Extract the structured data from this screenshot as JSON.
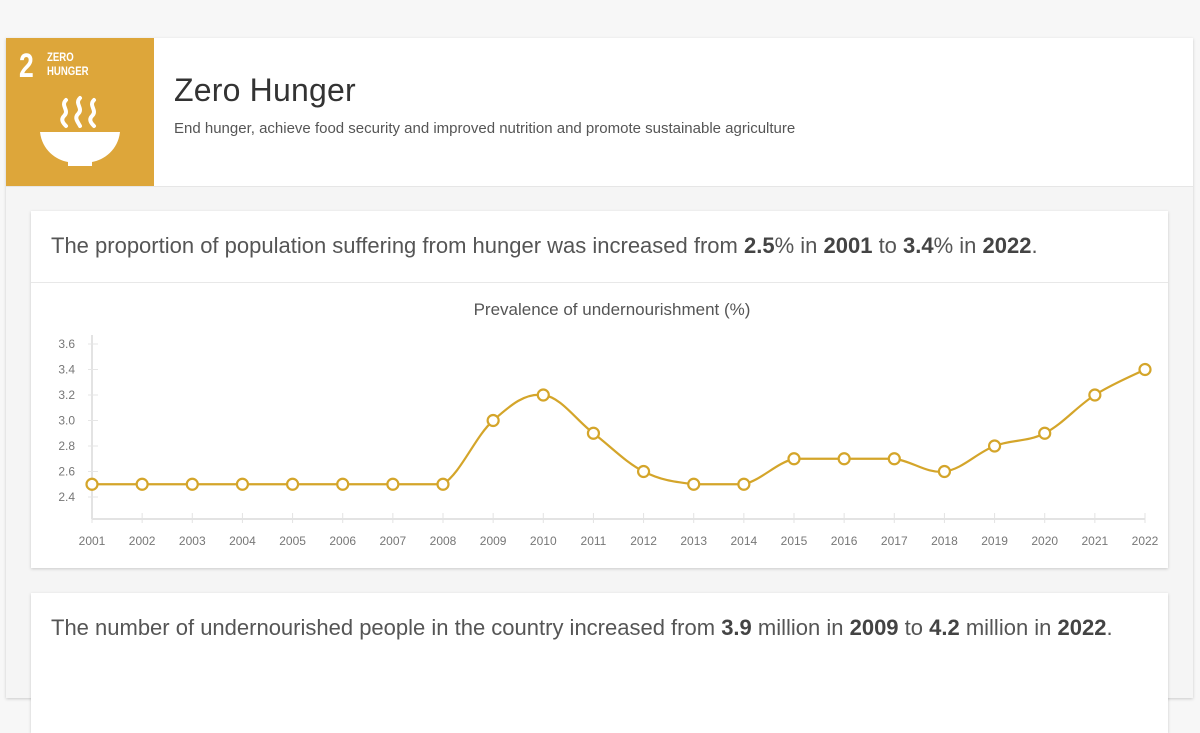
{
  "goal": {
    "number": "2",
    "label_line1": "ZERO",
    "label_line2": "HUNGER",
    "icon": "steaming-bowl-icon",
    "color": "#dda63a",
    "title": "Zero Hunger",
    "subtitle": "End hunger, achieve food security and improved nutrition and promote sustainable agriculture"
  },
  "cards": [
    {
      "statement": {
        "t1": "The proportion of population suffering from hunger was increased from ",
        "v1": "2.5",
        "t2": "% in ",
        "v2": "2001",
        "t3": " to ",
        "v3": "3.4",
        "t4": "% in ",
        "v4": "2022",
        "t5": "."
      }
    },
    {
      "statement": {
        "t1": "The number of undernourished people in the country increased from ",
        "v1": "3.9",
        "t2": " million in ",
        "v2": "2009",
        "t3": " to ",
        "v3": "4.2",
        "t4": " million in ",
        "v4": "2022",
        "t5": "."
      }
    }
  ],
  "chart_data": {
    "type": "line",
    "title": "Prevalence of undernourishment (%)",
    "xlabel": "",
    "ylabel": "",
    "x": [
      "2001",
      "2002",
      "2003",
      "2004",
      "2005",
      "2006",
      "2007",
      "2008",
      "2009",
      "2010",
      "2011",
      "2012",
      "2013",
      "2014",
      "2015",
      "2016",
      "2017",
      "2018",
      "2019",
      "2020",
      "2021",
      "2022"
    ],
    "series": [
      {
        "name": "Prevalence of undernourishment (%)",
        "color": "#d4a52a",
        "values": [
          2.5,
          2.5,
          2.5,
          2.5,
          2.5,
          2.5,
          2.5,
          2.5,
          3.0,
          3.2,
          2.9,
          2.6,
          2.5,
          2.5,
          2.7,
          2.7,
          2.7,
          2.6,
          2.8,
          2.9,
          3.2,
          3.4
        ]
      }
    ],
    "yticks": [
      "2.4",
      "2.6",
      "2.8",
      "3.0",
      "3.2",
      "3.4",
      "3.6"
    ],
    "ylim": [
      2.4,
      3.6
    ],
    "grid": false,
    "legend": "none",
    "smooth": true
  }
}
